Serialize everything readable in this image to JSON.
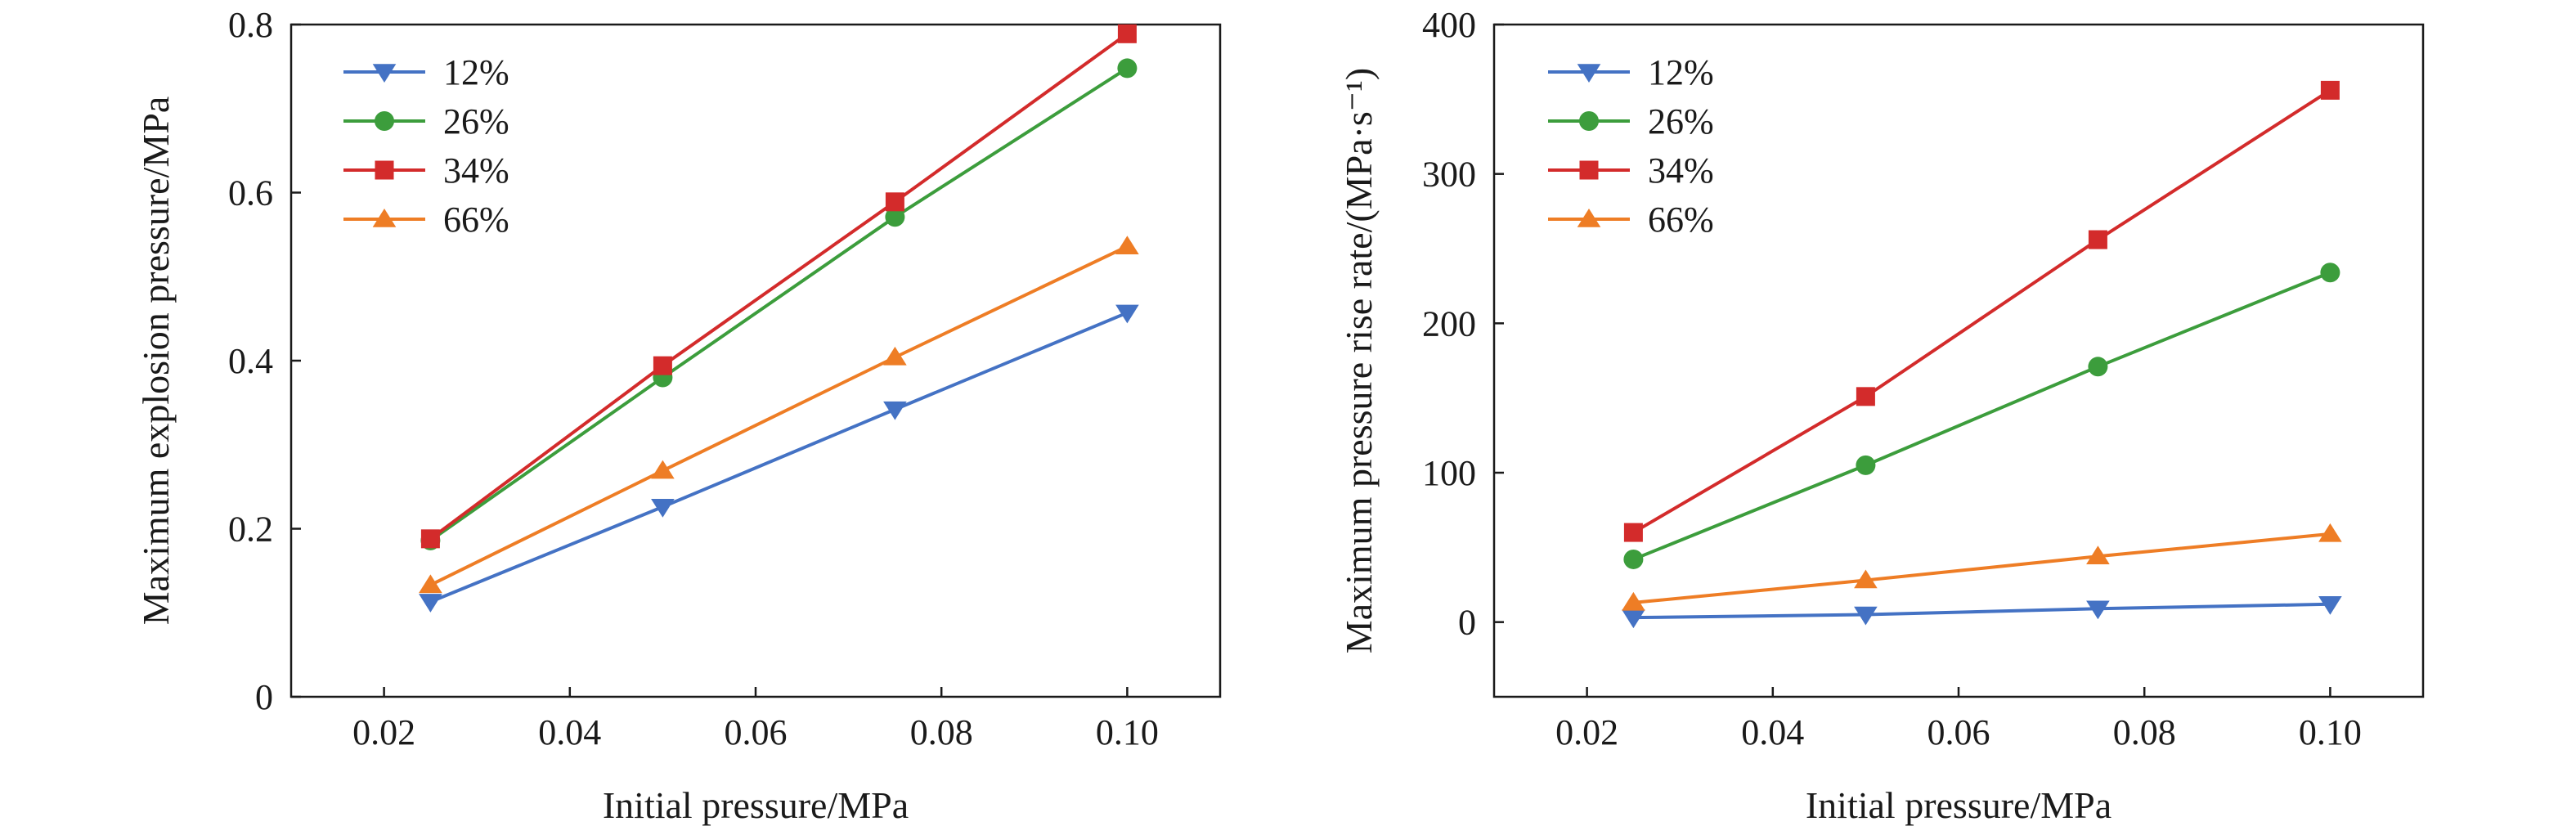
{
  "series_colors": {
    "12%": "#4472c4",
    "26%": "#3c9d3c",
    "34%": "#d32b2b",
    "66%": "#ee7d25"
  },
  "chart_data": [
    {
      "type": "line",
      "xlabel": "Initial pressure/MPa",
      "ylabel": "Maximum explosion pressure/MPa",
      "xlim": [
        0.01,
        0.11
      ],
      "ylim": [
        0,
        0.8
      ],
      "xticks": [
        0.02,
        0.04,
        0.06,
        0.08,
        0.1
      ],
      "xtick_labels": [
        "0.02",
        "0.04",
        "0.06",
        "0.08",
        "0.10"
      ],
      "yticks": [
        0,
        0.2,
        0.4,
        0.6,
        0.8
      ],
      "ytick_labels": [
        "0",
        "0.2",
        "0.4",
        "0.6",
        "0.8"
      ],
      "grid": false,
      "legend_position": "top-left",
      "x": [
        0.025,
        0.05,
        0.075,
        0.1
      ],
      "series": [
        {
          "name": "12%",
          "marker": "triangle-down",
          "values": [
            0.113,
            0.226,
            0.342,
            0.457
          ]
        },
        {
          "name": "26%",
          "marker": "circle",
          "values": [
            0.186,
            0.38,
            0.571,
            0.748
          ]
        },
        {
          "name": "34%",
          "marker": "square",
          "values": [
            0.188,
            0.394,
            0.589,
            0.789
          ]
        },
        {
          "name": "66%",
          "marker": "triangle-up",
          "values": [
            0.133,
            0.269,
            0.404,
            0.536
          ]
        }
      ]
    },
    {
      "type": "line",
      "xlabel": "Initial pressure/MPa",
      "ylabel": "Maximum pressure rise rate/(MPa·s⁻¹)",
      "xlim": [
        0.01,
        0.11
      ],
      "ylim": [
        -50,
        400
      ],
      "xticks": [
        0.02,
        0.04,
        0.06,
        0.08,
        0.1
      ],
      "xtick_labels": [
        "0.02",
        "0.04",
        "0.06",
        "0.08",
        "0.10"
      ],
      "yticks": [
        0,
        100,
        200,
        300,
        400
      ],
      "ytick_labels": [
        "0",
        "100",
        "200",
        "300",
        "400"
      ],
      "grid": false,
      "legend_position": "top-left",
      "x": [
        0.025,
        0.05,
        0.075,
        0.1
      ],
      "series": [
        {
          "name": "12%",
          "marker": "triangle-down",
          "values": [
            3,
            5,
            9,
            12
          ]
        },
        {
          "name": "26%",
          "marker": "circle",
          "values": [
            42,
            105,
            171,
            234
          ]
        },
        {
          "name": "34%",
          "marker": "square",
          "values": [
            60,
            151,
            256,
            356
          ]
        },
        {
          "name": "66%",
          "marker": "triangle-up",
          "values": [
            13,
            28,
            44,
            59
          ]
        }
      ]
    }
  ]
}
